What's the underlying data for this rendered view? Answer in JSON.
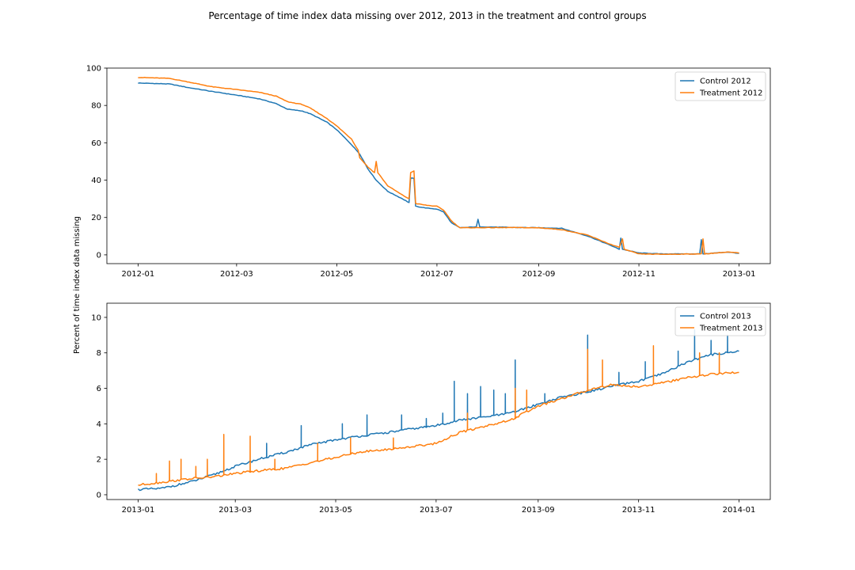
{
  "figure": {
    "suptitle": "Percentage of time index data missing over 2012, 2013 in the treatment and control groups",
    "ylabel": "Percent of time index data missing"
  },
  "colors": {
    "control": "#1f77b4",
    "treatment": "#ff7f0e"
  },
  "chart_data": [
    {
      "type": "line",
      "x_type": "date",
      "xlim": [
        "2011-12-13",
        "2013-01-20"
      ],
      "ylim": [
        -4.7,
        100
      ],
      "xticks": [
        "2012-01",
        "2012-03",
        "2012-05",
        "2012-07",
        "2012-09",
        "2012-11",
        "2013-01"
      ],
      "yticks": [
        0,
        20,
        40,
        60,
        80,
        100
      ],
      "legend_position": "top-right",
      "grid": false,
      "series": [
        {
          "name": "Control 2012",
          "color": "#1f77b4",
          "points": [
            [
              "2012-01-01",
              92
            ],
            [
              "2012-01-20",
              91.5
            ],
            [
              "2012-02-01",
              89.5
            ],
            [
              "2012-02-15",
              87.5
            ],
            [
              "2012-03-01",
              85.5
            ],
            [
              "2012-03-15",
              83.5
            ],
            [
              "2012-03-25",
              81
            ],
            [
              "2012-04-01",
              78
            ],
            [
              "2012-04-10",
              77
            ],
            [
              "2012-04-15",
              75.5
            ],
            [
              "2012-04-25",
              71
            ],
            [
              "2012-05-01",
              67
            ],
            [
              "2012-05-10",
              59
            ],
            [
              "2012-05-15",
              54
            ],
            [
              "2012-05-20",
              46
            ],
            [
              "2012-05-25",
              40
            ],
            [
              "2012-06-01",
              34
            ],
            [
              "2012-06-10",
              30
            ],
            [
              "2012-06-14",
              28
            ],
            [
              "2012-06-15",
              41
            ],
            [
              "2012-06-17",
              41
            ],
            [
              "2012-06-18",
              26
            ],
            [
              "2012-06-25",
              25
            ],
            [
              "2012-07-01",
              24.5
            ],
            [
              "2012-07-05",
              23
            ],
            [
              "2012-07-10",
              17
            ],
            [
              "2012-07-15",
              14.5
            ],
            [
              "2012-07-25",
              15
            ],
            [
              "2012-07-26",
              19
            ],
            [
              "2012-07-27",
              15
            ],
            [
              "2012-08-15",
              14.7
            ],
            [
              "2012-09-01",
              14.5
            ],
            [
              "2012-09-15",
              14.2
            ],
            [
              "2012-10-01",
              10
            ],
            [
              "2012-10-15",
              5
            ],
            [
              "2012-10-20",
              3
            ],
            [
              "2012-10-21",
              9
            ],
            [
              "2012-10-22",
              3
            ],
            [
              "2012-11-01",
              1
            ],
            [
              "2012-11-15",
              0.5
            ],
            [
              "2012-12-08",
              0.5
            ],
            [
              "2012-12-09",
              8
            ],
            [
              "2012-12-10",
              0.5
            ],
            [
              "2012-12-25",
              1.5
            ],
            [
              "2013-01-01",
              0.8
            ]
          ]
        },
        {
          "name": "Treatment 2012",
          "color": "#ff7f0e",
          "points": [
            [
              "2012-01-01",
              95
            ],
            [
              "2012-01-20",
              94.5
            ],
            [
              "2012-02-01",
              92.5
            ],
            [
              "2012-02-15",
              90
            ],
            [
              "2012-03-01",
              88.5
            ],
            [
              "2012-03-15",
              87
            ],
            [
              "2012-03-25",
              85
            ],
            [
              "2012-04-01",
              82
            ],
            [
              "2012-04-10",
              80.5
            ],
            [
              "2012-04-15",
              78.5
            ],
            [
              "2012-04-25",
              73
            ],
            [
              "2012-05-01",
              69
            ],
            [
              "2012-05-10",
              62
            ],
            [
              "2012-05-14",
              56
            ],
            [
              "2012-05-15",
              52
            ],
            [
              "2012-05-20",
              47
            ],
            [
              "2012-05-24",
              44
            ],
            [
              "2012-05-25",
              50
            ],
            [
              "2012-05-26",
              44
            ],
            [
              "2012-06-01",
              37
            ],
            [
              "2012-06-10",
              32
            ],
            [
              "2012-06-14",
              30
            ],
            [
              "2012-06-15",
              44
            ],
            [
              "2012-06-17",
              45
            ],
            [
              "2012-06-18",
              27.5
            ],
            [
              "2012-06-25",
              26.5
            ],
            [
              "2012-07-01",
              26
            ],
            [
              "2012-07-05",
              24
            ],
            [
              "2012-07-10",
              18
            ],
            [
              "2012-07-15",
              14.5
            ],
            [
              "2012-08-15",
              14.6
            ],
            [
              "2012-09-01",
              14.5
            ],
            [
              "2012-09-15",
              13.5
            ],
            [
              "2012-10-01",
              10.5
            ],
            [
              "2012-10-15",
              5.5
            ],
            [
              "2012-10-20",
              4
            ],
            [
              "2012-10-22",
              8.5
            ],
            [
              "2012-10-23",
              3
            ],
            [
              "2012-11-01",
              0.5
            ],
            [
              "2012-11-15",
              0.3
            ],
            [
              "2012-12-09",
              0.5
            ],
            [
              "2012-12-10",
              8.5
            ],
            [
              "2012-12-11",
              0.5
            ],
            [
              "2012-12-25",
              1.5
            ],
            [
              "2013-01-01",
              1
            ]
          ]
        }
      ]
    },
    {
      "type": "line",
      "x_type": "date",
      "xlim": [
        "2012-12-13",
        "2014-01-20"
      ],
      "ylim": [
        -0.27,
        10.8
      ],
      "xticks": [
        "2013-01",
        "2013-03",
        "2013-05",
        "2013-07",
        "2013-09",
        "2013-11",
        "2014-01"
      ],
      "yticks": [
        0,
        2,
        4,
        6,
        8,
        10
      ],
      "legend_position": "top-right",
      "grid": false,
      "series": [
        {
          "name": "Control 2013",
          "color": "#1f77b4",
          "points": [
            [
              "2013-01-01",
              0.3
            ],
            [
              "2013-01-15",
              0.35
            ],
            [
              "2013-02-01",
              0.7
            ],
            [
              "2013-02-15",
              1.1
            ],
            [
              "2013-03-01",
              1.6
            ],
            [
              "2013-03-15",
              2.0
            ],
            [
              "2013-04-01",
              2.4
            ],
            [
              "2013-04-15",
              2.8
            ],
            [
              "2013-05-01",
              3.1
            ],
            [
              "2013-05-15",
              3.3
            ],
            [
              "2013-06-01",
              3.5
            ],
            [
              "2013-06-15",
              3.7
            ],
            [
              "2013-07-01",
              3.9
            ],
            [
              "2013-07-15",
              4.2
            ],
            [
              "2013-08-01",
              4.4
            ],
            [
              "2013-08-15",
              4.6
            ],
            [
              "2013-09-01",
              5.1
            ],
            [
              "2013-09-15",
              5.5
            ],
            [
              "2013-10-01",
              5.8
            ],
            [
              "2013-10-15",
              6.1
            ],
            [
              "2013-11-01",
              6.4
            ],
            [
              "2013-11-15",
              6.8
            ],
            [
              "2013-12-01",
              7.5
            ],
            [
              "2013-12-15",
              7.9
            ],
            [
              "2014-01-01",
              8.1
            ]
          ],
          "spikes": [
            [
              "2013-03-20",
              2.9
            ],
            [
              "2013-04-10",
              3.9
            ],
            [
              "2013-05-05",
              4.0
            ],
            [
              "2013-05-20",
              4.5
            ],
            [
              "2013-06-10",
              4.5
            ],
            [
              "2013-06-25",
              4.3
            ],
            [
              "2013-07-05",
              4.6
            ],
            [
              "2013-07-12",
              6.4
            ],
            [
              "2013-07-20",
              5.7
            ],
            [
              "2013-07-28",
              6.1
            ],
            [
              "2013-08-05",
              5.9
            ],
            [
              "2013-08-12",
              5.7
            ],
            [
              "2013-08-18",
              7.6
            ],
            [
              "2013-09-05",
              5.7
            ],
            [
              "2013-10-01",
              9.0
            ],
            [
              "2013-10-20",
              6.9
            ],
            [
              "2013-11-05",
              7.5
            ],
            [
              "2013-11-25",
              8.1
            ],
            [
              "2013-12-05",
              9.3
            ],
            [
              "2013-12-15",
              8.7
            ],
            [
              "2013-12-25",
              9.0
            ]
          ]
        },
        {
          "name": "Treatment 2013",
          "color": "#ff7f0e",
          "points": [
            [
              "2013-01-01",
              0.55
            ],
            [
              "2013-01-15",
              0.7
            ],
            [
              "2013-02-01",
              0.9
            ],
            [
              "2013-02-15",
              1.0
            ],
            [
              "2013-03-01",
              1.2
            ],
            [
              "2013-03-15",
              1.35
            ],
            [
              "2013-04-01",
              1.5
            ],
            [
              "2013-04-15",
              1.8
            ],
            [
              "2013-05-01",
              2.1
            ],
            [
              "2013-05-15",
              2.4
            ],
            [
              "2013-06-01",
              2.55
            ],
            [
              "2013-06-15",
              2.7
            ],
            [
              "2013-07-01",
              2.9
            ],
            [
              "2013-07-15",
              3.5
            ],
            [
              "2013-08-01",
              3.9
            ],
            [
              "2013-08-15",
              4.2
            ],
            [
              "2013-09-01",
              5.0
            ],
            [
              "2013-09-15",
              5.4
            ],
            [
              "2013-10-01",
              5.9
            ],
            [
              "2013-10-15",
              6.2
            ],
            [
              "2013-11-01",
              6.1
            ],
            [
              "2013-11-15",
              6.3
            ],
            [
              "2013-12-01",
              6.6
            ],
            [
              "2013-12-15",
              6.8
            ],
            [
              "2014-01-01",
              6.9
            ]
          ],
          "spikes": [
            [
              "2013-01-12",
              1.2
            ],
            [
              "2013-01-20",
              1.9
            ],
            [
              "2013-01-27",
              2.0
            ],
            [
              "2013-02-05",
              1.6
            ],
            [
              "2013-02-12",
              2.0
            ],
            [
              "2013-02-22",
              3.4
            ],
            [
              "2013-03-10",
              3.3
            ],
            [
              "2013-03-25",
              2.0
            ],
            [
              "2013-04-20",
              2.9
            ],
            [
              "2013-05-10",
              3.2
            ],
            [
              "2013-06-05",
              3.2
            ],
            [
              "2013-07-20",
              4.6
            ],
            [
              "2013-08-18",
              6.0
            ],
            [
              "2013-08-25",
              5.9
            ],
            [
              "2013-10-01",
              8.2
            ],
            [
              "2013-10-10",
              7.6
            ],
            [
              "2013-11-10",
              8.4
            ],
            [
              "2013-12-08",
              8.0
            ],
            [
              "2013-12-20",
              8.0
            ]
          ]
        }
      ]
    }
  ]
}
